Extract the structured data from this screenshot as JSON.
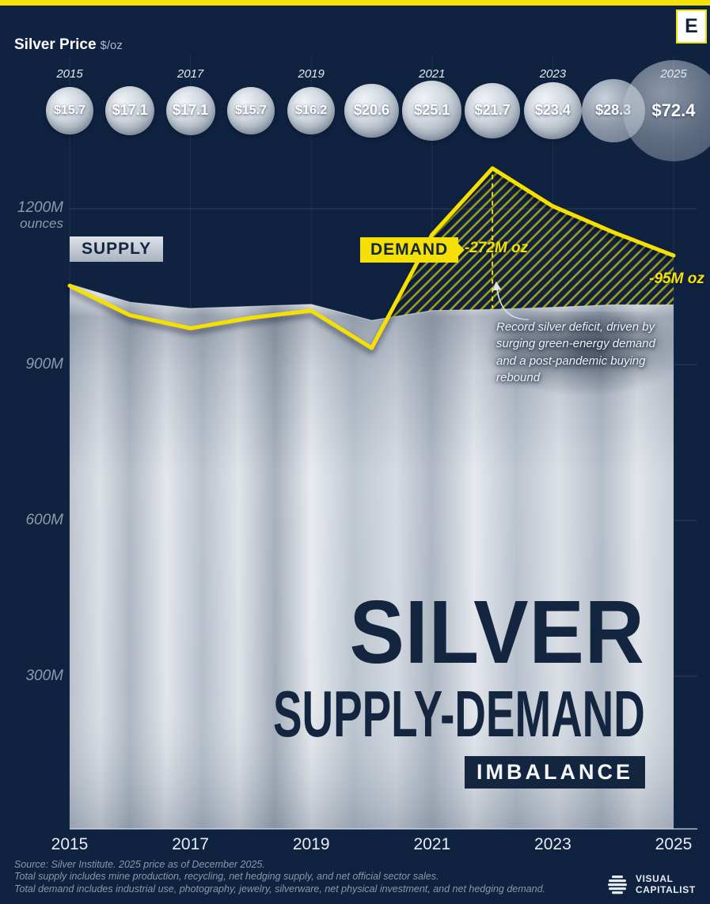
{
  "meta": {
    "accent_yellow": "#F5E003",
    "bg_navy": "#0F2240",
    "silver": "#C6CDD6",
    "title_navy": "#13253F"
  },
  "header": {
    "price_label": "Silver Price",
    "price_unit": "$/oz",
    "logo_letter": "E"
  },
  "price_row": {
    "prices_display": [
      "$15.7",
      "$17.1",
      "$17.1",
      "$15.7",
      "$16.2",
      "$20.6",
      "$25.1",
      "$21.7",
      "$23.4",
      "$28.3",
      "$72.4"
    ],
    "year_labels": [
      "2015",
      "2017",
      "2019",
      "2021",
      "2023",
      "2025"
    ]
  },
  "y_axis": {
    "t1200": "1200M",
    "unit": "ounces",
    "t900": "900M",
    "t600": "600M",
    "t300": "300M"
  },
  "chart_labels": {
    "supply": "SUPPLY",
    "demand": "DEMAND",
    "deficit_2022": "-272M oz",
    "deficit_2025": "-95M oz",
    "annotation_note": "Record silver deficit, driven by surging green-energy demand and a post-pandemic buying rebound"
  },
  "chart_data": {
    "type": "area",
    "title": "Silver Supply-Demand Imbalance",
    "x": [
      2015,
      2016,
      2017,
      2018,
      2019,
      2020,
      2021,
      2022,
      2023,
      2024,
      2025
    ],
    "series": [
      {
        "name": "Supply",
        "unit": "M oz",
        "values": [
          1055,
          1020,
          1008,
          1012,
          1016,
          985,
          1004,
          1006,
          1010,
          1015,
          1015
        ]
      },
      {
        "name": "Demand",
        "unit": "M oz",
        "values": [
          1052,
          995,
          970,
          990,
          1004,
          932,
          1150,
          1278,
          1205,
          1155,
          1110
        ]
      },
      {
        "name": "Silver Price",
        "unit": "$/oz",
        "values": [
          15.7,
          17.1,
          17.1,
          15.7,
          16.2,
          20.6,
          25.1,
          21.7,
          23.4,
          28.3,
          72.4
        ]
      }
    ],
    "ylabel": "ounces",
    "ylim": [
      0,
      1350
    ],
    "ytick_values": [
      300,
      600,
      900,
      1200
    ],
    "ytick_labels": [
      "300M",
      "600M",
      "900M",
      "1200M"
    ],
    "xtick_labels": [
      "2015",
      "2017",
      "2019",
      "2021",
      "2023",
      "2025"
    ],
    "annotations": [
      {
        "x": 2022,
        "label": "-272M oz"
      },
      {
        "x": 2025,
        "label": "-95M oz"
      },
      {
        "text": "Record silver deficit, driven by surging green-energy demand and a post-pandemic buying rebound"
      }
    ],
    "legend": [
      "SUPPLY",
      "DEMAND"
    ],
    "grid": true
  },
  "title_block": {
    "line1": "SILVER",
    "line2": "SUPPLY-DEMAND",
    "line3": "IMBALANCE"
  },
  "footer": {
    "source": "Source: Silver Institute. 2025 price as of December 2025.",
    "supply_note": "Total supply includes mine production, recycling, net hedging supply, and net official sector sales.",
    "demand_note": "Total demand includes industrial use, photography, jewelry, silverware, net physical investment, and net hedging demand.",
    "logo_line1": "VISUAL",
    "logo_line2": "CAPITALIST"
  }
}
